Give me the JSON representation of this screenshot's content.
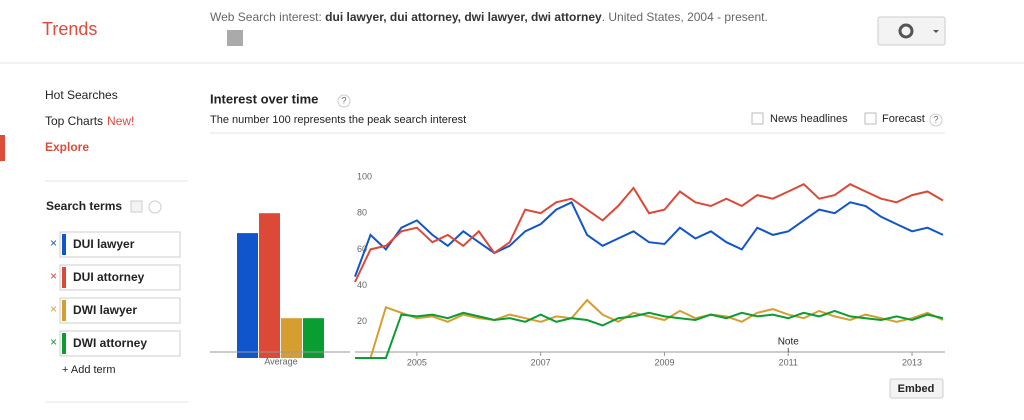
{
  "header": {
    "logo": "Trends",
    "description_prefix": "Web Search interest: ",
    "terms": "dui lawyer, dui attorney, dwi lawyer, dwi attorney",
    "description_suffix": ". United States, 2004 - present."
  },
  "nav": {
    "items": [
      "Hot Searches",
      "Top Charts",
      "Explore"
    ],
    "badge": "New!"
  },
  "search_terms": {
    "title": "Search terms",
    "remove": "×",
    "add": "+ Add term"
  },
  "panel": {
    "title": "Interest over time",
    "help": "?",
    "subtitle": "The number 100 represents the peak search interest",
    "options": [
      "News headlines",
      "Forecast"
    ],
    "embed": "Embed"
  },
  "chart_data": [
    {
      "type": "bar",
      "x_label": "Average",
      "values": [
        69,
        80,
        22,
        22
      ],
      "colors": [
        "#1155cc",
        "#dc4937",
        "#d69e31",
        "#0a9d32"
      ],
      "ylim": [
        0,
        100
      ]
    },
    {
      "type": "line",
      "annotation": "Note",
      "x": [
        2004,
        2004.25,
        2004.5,
        2004.75,
        2005,
        2005.25,
        2005.5,
        2005.75,
        2006,
        2006.25,
        2006.5,
        2006.75,
        2007,
        2007.25,
        2007.5,
        2007.75,
        2008,
        2008.25,
        2008.5,
        2008.75,
        2009,
        2009.25,
        2009.5,
        2009.75,
        2010,
        2010.25,
        2010.5,
        2010.75,
        2011,
        2011.25,
        2011.5,
        2011.75,
        2012,
        2012.25,
        2012.5,
        2012.75,
        2013,
        2013.25,
        2013.5
      ],
      "series": [
        {
          "name": "DUI lawyer",
          "color": "#1155cc",
          "values": [
            45,
            68,
            60,
            72,
            76,
            68,
            62,
            70,
            64,
            58,
            62,
            70,
            74,
            82,
            86,
            68,
            62,
            66,
            70,
            64,
            63,
            72,
            66,
            70,
            64,
            60,
            72,
            68,
            70,
            76,
            82,
            80,
            86,
            84,
            78,
            74,
            70,
            72,
            68
          ]
        },
        {
          "name": "DUI attorney",
          "color": "#dc4937",
          "values": [
            42,
            60,
            62,
            70,
            72,
            64,
            68,
            62,
            70,
            58,
            64,
            82,
            80,
            86,
            88,
            82,
            76,
            84,
            94,
            80,
            82,
            92,
            86,
            84,
            88,
            84,
            90,
            88,
            92,
            96,
            88,
            90,
            96,
            92,
            88,
            86,
            90,
            92,
            87
          ]
        },
        {
          "name": "DWI lawyer",
          "color": "#d69e31",
          "values": [
            0,
            0,
            28,
            25,
            22,
            23,
            20,
            24,
            22,
            21,
            24,
            22,
            20,
            23,
            22,
            32,
            24,
            20,
            25,
            23,
            21,
            26,
            22,
            24,
            23,
            20,
            25,
            27,
            24,
            22,
            26,
            23,
            21,
            24,
            22,
            20,
            22,
            25,
            21
          ]
        },
        {
          "name": "DWI attorney",
          "color": "#0a9d32",
          "values": [
            0,
            0,
            0,
            24,
            23,
            24,
            22,
            25,
            23,
            21,
            22,
            20,
            24,
            20,
            22,
            21,
            18,
            22,
            23,
            25,
            23,
            22,
            21,
            24,
            22,
            25,
            23,
            24,
            22,
            25,
            23,
            26,
            23,
            22,
            21,
            23,
            21,
            24,
            22
          ]
        }
      ],
      "xlim": [
        2004,
        2013.5
      ],
      "xticks": [
        2005,
        2007,
        2009,
        2011,
        2013
      ],
      "ylim": [
        0,
        100
      ],
      "yticks": [
        20,
        40,
        60,
        80,
        100
      ],
      "grid": false
    }
  ]
}
